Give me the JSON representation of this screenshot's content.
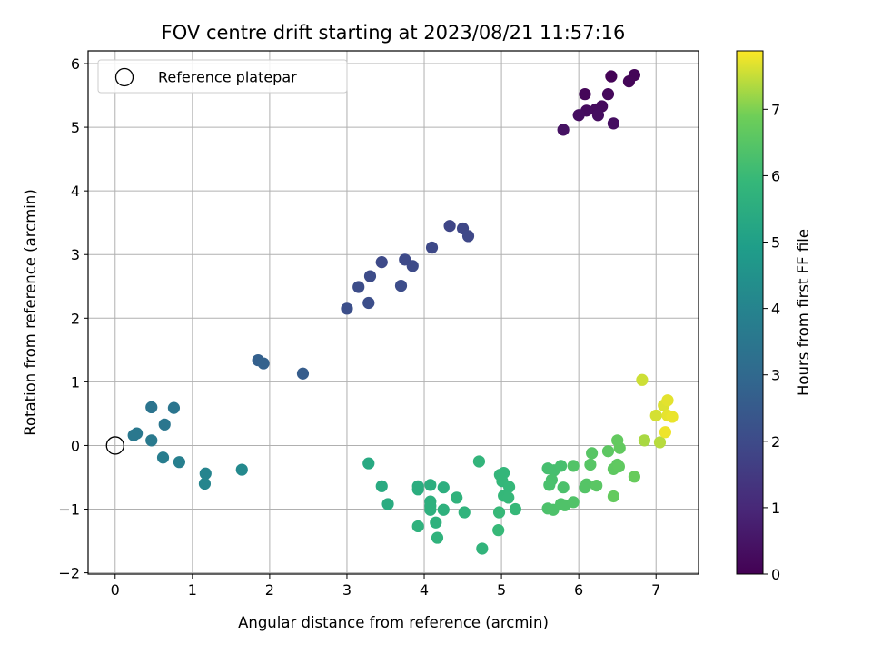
{
  "chart_data": {
    "type": "scatter",
    "title": "FOV centre drift starting at 2023/08/21 11:57:16",
    "xlabel": "Angular distance from reference (arcmin)",
    "ylabel": "Rotation from reference (arcmin)",
    "xlim": [
      -0.35,
      7.55
    ],
    "ylim": [
      -2.02,
      6.2
    ],
    "xticks": [
      0,
      1,
      2,
      3,
      4,
      5,
      6,
      7
    ],
    "yticks": [
      -2,
      -1,
      0,
      1,
      2,
      3,
      4,
      5,
      6
    ],
    "grid": true,
    "legend": {
      "placement": "top-left",
      "entries": [
        "Reference platepar"
      ]
    },
    "reference_point": {
      "x": 0,
      "y": 0,
      "marker": "open-circle"
    },
    "colorbar": {
      "label": "Hours from first FF file",
      "colormap": "viridis",
      "range": [
        0,
        7.88
      ],
      "ticks": [
        0,
        1,
        2,
        3,
        4,
        5,
        6,
        7
      ]
    },
    "points": [
      {
        "x": 6.42,
        "y": 5.8,
        "c": 0.05
      },
      {
        "x": 6.72,
        "y": 5.82,
        "c": 0.1
      },
      {
        "x": 6.65,
        "y": 5.72,
        "c": 0.12
      },
      {
        "x": 6.08,
        "y": 5.52,
        "c": 0.15
      },
      {
        "x": 6.38,
        "y": 5.52,
        "c": 0.18
      },
      {
        "x": 6.3,
        "y": 5.33,
        "c": 0.22
      },
      {
        "x": 6.22,
        "y": 5.28,
        "c": 0.25
      },
      {
        "x": 6.1,
        "y": 5.26,
        "c": 0.28
      },
      {
        "x": 6.25,
        "y": 5.19,
        "c": 0.3
      },
      {
        "x": 6.0,
        "y": 5.19,
        "c": 0.33
      },
      {
        "x": 6.45,
        "y": 5.06,
        "c": 0.36
      },
      {
        "x": 5.8,
        "y": 4.96,
        "c": 0.42
      },
      {
        "x": 4.33,
        "y": 3.45,
        "c": 1.85
      },
      {
        "x": 4.5,
        "y": 3.41,
        "c": 1.88
      },
      {
        "x": 4.57,
        "y": 3.29,
        "c": 1.9
      },
      {
        "x": 4.1,
        "y": 3.11,
        "c": 1.93
      },
      {
        "x": 3.75,
        "y": 2.92,
        "c": 1.96
      },
      {
        "x": 3.45,
        "y": 2.88,
        "c": 1.98
      },
      {
        "x": 3.85,
        "y": 2.82,
        "c": 2.0
      },
      {
        "x": 3.3,
        "y": 2.66,
        "c": 2.03
      },
      {
        "x": 3.15,
        "y": 2.49,
        "c": 2.06
      },
      {
        "x": 3.7,
        "y": 2.51,
        "c": 2.08
      },
      {
        "x": 3.28,
        "y": 2.24,
        "c": 2.1
      },
      {
        "x": 3.0,
        "y": 2.15,
        "c": 2.13
      },
      {
        "x": 2.43,
        "y": 1.13,
        "c": 2.6
      },
      {
        "x": 1.85,
        "y": 1.34,
        "c": 2.7
      },
      {
        "x": 1.92,
        "y": 1.29,
        "c": 2.75
      },
      {
        "x": 0.47,
        "y": 0.6,
        "c": 3.4
      },
      {
        "x": 0.76,
        "y": 0.59,
        "c": 3.45
      },
      {
        "x": 0.64,
        "y": 0.33,
        "c": 3.5
      },
      {
        "x": 0.28,
        "y": 0.19,
        "c": 3.55
      },
      {
        "x": 0.24,
        "y": 0.16,
        "c": 3.58
      },
      {
        "x": 0.47,
        "y": 0.08,
        "c": 3.62
      },
      {
        "x": 0.62,
        "y": -0.19,
        "c": 3.75
      },
      {
        "x": 0.83,
        "y": -0.26,
        "c": 3.82
      },
      {
        "x": 1.17,
        "y": -0.44,
        "c": 4.0
      },
      {
        "x": 1.16,
        "y": -0.6,
        "c": 4.05
      },
      {
        "x": 1.64,
        "y": -0.38,
        "c": 4.2
      },
      {
        "x": 3.28,
        "y": -0.28,
        "c": 5.35
      },
      {
        "x": 3.45,
        "y": -0.64,
        "c": 5.4
      },
      {
        "x": 3.53,
        "y": -0.92,
        "c": 5.45
      },
      {
        "x": 3.92,
        "y": -0.64,
        "c": 5.5
      },
      {
        "x": 3.92,
        "y": -0.69,
        "c": 5.52
      },
      {
        "x": 4.08,
        "y": -0.62,
        "c": 5.55
      },
      {
        "x": 4.25,
        "y": -0.66,
        "c": 5.57
      },
      {
        "x": 4.08,
        "y": -0.88,
        "c": 5.6
      },
      {
        "x": 4.08,
        "y": -0.95,
        "c": 5.62
      },
      {
        "x": 4.08,
        "y": -1.01,
        "c": 5.63
      },
      {
        "x": 4.25,
        "y": -1.01,
        "c": 5.65
      },
      {
        "x": 3.92,
        "y": -1.27,
        "c": 5.67
      },
      {
        "x": 4.15,
        "y": -1.21,
        "c": 5.68
      },
      {
        "x": 4.17,
        "y": -1.45,
        "c": 5.7
      },
      {
        "x": 4.42,
        "y": -0.82,
        "c": 5.72
      },
      {
        "x": 4.52,
        "y": -1.05,
        "c": 5.74
      },
      {
        "x": 4.75,
        "y": -1.62,
        "c": 5.76
      },
      {
        "x": 4.71,
        "y": -0.25,
        "c": 5.8
      },
      {
        "x": 4.98,
        "y": -0.46,
        "c": 5.85
      },
      {
        "x": 5.03,
        "y": -0.43,
        "c": 5.87
      },
      {
        "x": 5.01,
        "y": -0.56,
        "c": 5.88
      },
      {
        "x": 5.1,
        "y": -0.65,
        "c": 5.9
      },
      {
        "x": 5.03,
        "y": -0.79,
        "c": 5.91
      },
      {
        "x": 5.09,
        "y": -0.82,
        "c": 5.92
      },
      {
        "x": 5.18,
        "y": -1.0,
        "c": 5.93
      },
      {
        "x": 4.97,
        "y": -1.05,
        "c": 5.94
      },
      {
        "x": 4.96,
        "y": -1.33,
        "c": 5.95
      },
      {
        "x": 5.6,
        "y": -0.36,
        "c": 6.2
      },
      {
        "x": 5.68,
        "y": -0.39,
        "c": 6.22
      },
      {
        "x": 5.77,
        "y": -0.32,
        "c": 6.24
      },
      {
        "x": 5.65,
        "y": -0.54,
        "c": 6.26
      },
      {
        "x": 5.62,
        "y": -0.62,
        "c": 6.28
      },
      {
        "x": 5.8,
        "y": -0.66,
        "c": 6.3
      },
      {
        "x": 5.6,
        "y": -0.99,
        "c": 6.32
      },
      {
        "x": 5.67,
        "y": -1.01,
        "c": 6.34
      },
      {
        "x": 5.77,
        "y": -0.92,
        "c": 6.36
      },
      {
        "x": 5.82,
        "y": -0.94,
        "c": 6.38
      },
      {
        "x": 5.93,
        "y": -0.89,
        "c": 6.4
      },
      {
        "x": 5.93,
        "y": -0.32,
        "c": 6.42
      },
      {
        "x": 6.08,
        "y": -0.66,
        "c": 6.45
      },
      {
        "x": 6.1,
        "y": -0.61,
        "c": 6.47
      },
      {
        "x": 6.15,
        "y": -0.3,
        "c": 6.5
      },
      {
        "x": 6.17,
        "y": -0.12,
        "c": 6.52
      },
      {
        "x": 6.23,
        "y": -0.63,
        "c": 6.55
      },
      {
        "x": 6.38,
        "y": -0.09,
        "c": 6.6
      },
      {
        "x": 6.45,
        "y": -0.37,
        "c": 6.62
      },
      {
        "x": 6.5,
        "y": -0.3,
        "c": 6.64
      },
      {
        "x": 6.52,
        "y": -0.33,
        "c": 6.66
      },
      {
        "x": 6.53,
        "y": -0.04,
        "c": 6.68
      },
      {
        "x": 6.5,
        "y": 0.08,
        "c": 6.7
      },
      {
        "x": 6.45,
        "y": -0.8,
        "c": 6.72
      },
      {
        "x": 6.72,
        "y": -0.49,
        "c": 6.78
      },
      {
        "x": 6.82,
        "y": 1.03,
        "c": 7.55
      },
      {
        "x": 6.85,
        "y": 0.08,
        "c": 7.3
      },
      {
        "x": 7.0,
        "y": 0.47,
        "c": 7.6
      },
      {
        "x": 7.05,
        "y": 0.05,
        "c": 7.4
      },
      {
        "x": 7.1,
        "y": 0.63,
        "c": 7.65
      },
      {
        "x": 7.15,
        "y": 0.71,
        "c": 7.7
      },
      {
        "x": 7.15,
        "y": 0.47,
        "c": 7.72
      },
      {
        "x": 7.21,
        "y": 0.45,
        "c": 7.75
      },
      {
        "x": 7.12,
        "y": 0.21,
        "c": 7.78
      }
    ]
  }
}
